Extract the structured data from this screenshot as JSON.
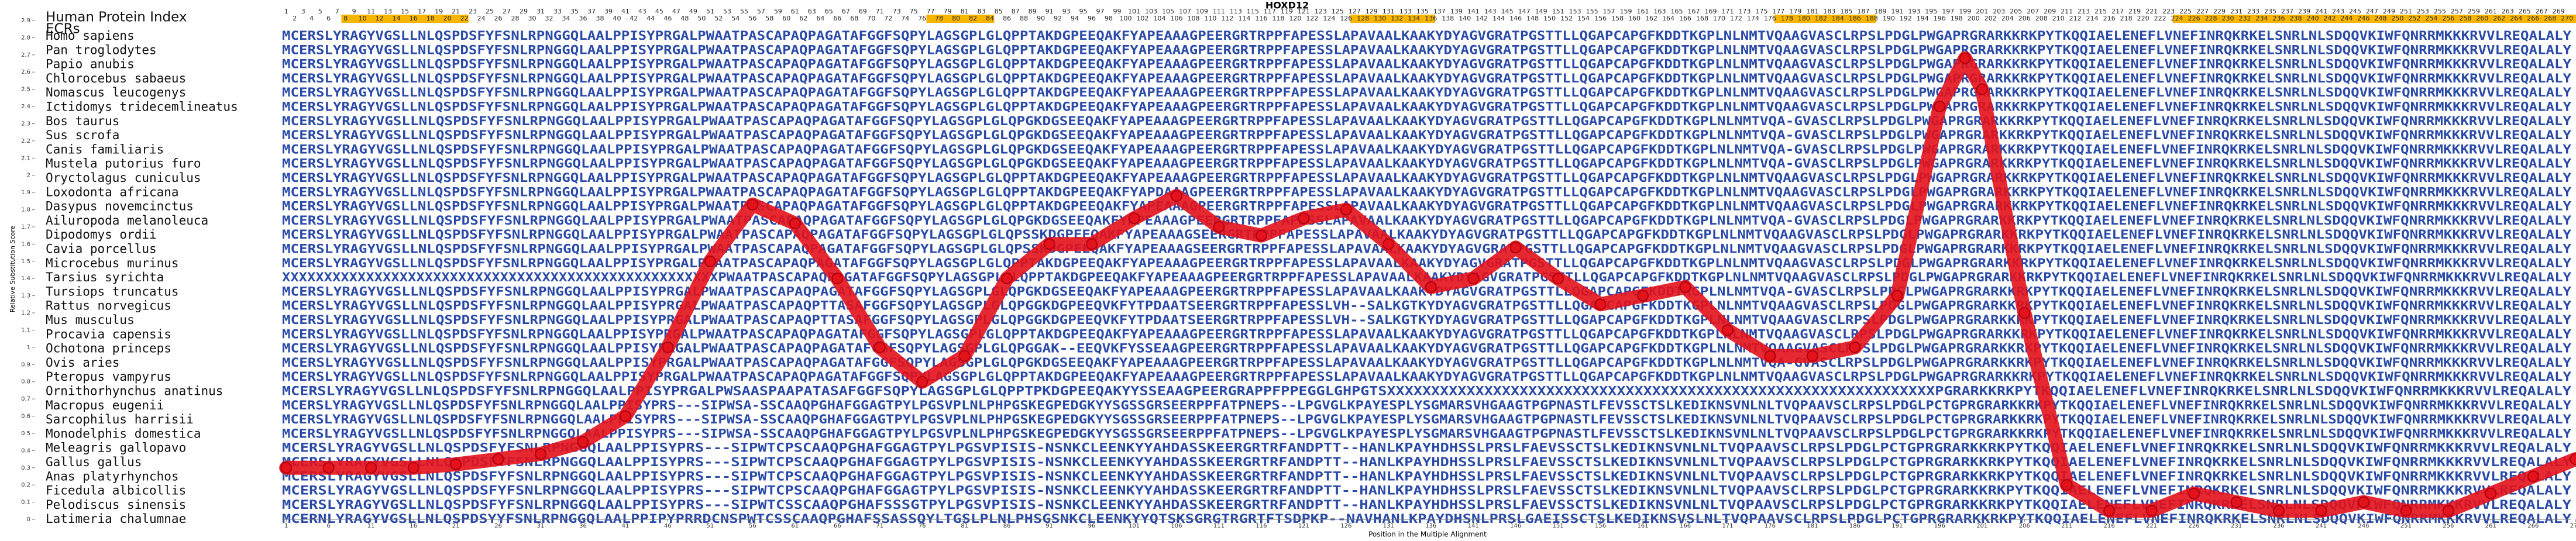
{
  "chart_data": {
    "type": "line",
    "title": "HOXD12",
    "x_label": "Position in the Multiple Alignment",
    "y_label": "Relative Substitution Score",
    "x": [
      1,
      6,
      11,
      16,
      21,
      26,
      31,
      36,
      41,
      46,
      51,
      56,
      61,
      66,
      71,
      76,
      81,
      86,
      91,
      96,
      101,
      106,
      111,
      116,
      121,
      126,
      131,
      136,
      141,
      146,
      151,
      156,
      161,
      166,
      171,
      176,
      181,
      186,
      191,
      196,
      199,
      201,
      206,
      211,
      216,
      221,
      226,
      231,
      236,
      241,
      246,
      251,
      256,
      261,
      266,
      271
    ],
    "series": [
      {
        "name": "Relative Substitution Score",
        "color": "#e3121b",
        "values": [
          0.3,
          0.3,
          0.3,
          0.3,
          0.32,
          0.35,
          0.38,
          0.45,
          0.6,
          1.0,
          1.5,
          1.83,
          1.72,
          1.4,
          1.0,
          0.8,
          0.95,
          1.4,
          1.6,
          1.6,
          1.75,
          1.88,
          1.7,
          1.65,
          1.75,
          1.8,
          1.6,
          1.35,
          1.4,
          1.58,
          1.4,
          1.25,
          1.3,
          1.35,
          1.1,
          0.95,
          0.95,
          1.0,
          1.3,
          2.4,
          2.68,
          2.5,
          1.2,
          0.2,
          0.05,
          0.05,
          0.15,
          0.1,
          0.05,
          0.05,
          0.1,
          0.05,
          0.05,
          0.15,
          0.25,
          0.35
        ]
      }
    ],
    "xlim": [
      1,
      271
    ],
    "ylim": [
      0,
      2.9
    ],
    "xticks": [
      1,
      6,
      11,
      16,
      21,
      26,
      31,
      36,
      41,
      46,
      51,
      56,
      61,
      66,
      71,
      76,
      81,
      86,
      91,
      96,
      101,
      106,
      111,
      116,
      121,
      126,
      131,
      136,
      141,
      146,
      151,
      156,
      161,
      166,
      171,
      176,
      181,
      186,
      191,
      196,
      201,
      206,
      211,
      216,
      221,
      226,
      231,
      236,
      241,
      246,
      251,
      256,
      261,
      266,
      271
    ],
    "yticks": [
      0,
      0.1,
      0.2,
      0.3,
      0.4,
      0.5,
      0.6,
      0.7,
      0.8,
      0.9,
      1,
      1.1,
      1.2,
      1.3,
      1.4,
      1.5,
      1.6,
      1.7,
      1.8,
      1.9,
      2,
      2.1,
      2.2,
      2.3,
      2.4,
      2.5,
      2.6,
      2.7,
      2.8,
      2.9
    ]
  },
  "alignment": {
    "index_label": "Human Protein Index",
    "ecr_label": "ECRs",
    "positions": [
      1,
      2,
      3,
      4,
      5,
      6,
      7,
      8,
      9,
      10,
      11,
      12,
      13,
      14,
      15,
      16,
      17,
      18,
      19,
      20,
      21,
      22,
      23,
      24,
      25,
      26,
      27,
      28,
      29,
      30,
      31,
      32,
      33,
      34,
      35,
      36,
      37,
      38,
      39,
      40,
      41,
      42,
      43,
      44,
      45,
      46,
      47,
      48,
      49,
      50,
      51,
      52,
      53,
      54,
      55,
      56,
      57,
      58,
      59,
      60,
      61,
      62,
      63,
      64,
      65,
      66,
      67,
      68,
      69,
      70,
      71,
      72,
      73,
      74,
      75,
      76,
      77,
      78,
      79,
      80,
      81,
      82,
      83,
      84,
      85,
      86,
      87,
      88,
      89,
      90,
      91,
      92,
      93,
      94,
      95,
      96,
      97,
      98,
      99,
      100,
      101,
      102,
      103,
      104,
      105,
      106,
      107,
      108,
      109,
      110,
      111,
      112,
      113,
      114,
      115,
      116,
      117,
      118,
      119,
      120,
      121,
      122,
      123,
      124,
      125,
      126,
      127,
      128,
      129,
      130,
      131,
      132,
      133,
      134,
      135,
      136,
      137,
      138,
      139,
      140,
      141,
      142,
      143,
      144,
      145,
      146,
      147,
      148,
      149,
      150,
      151,
      152,
      153,
      154,
      155,
      156,
      157,
      158,
      159,
      160,
      161,
      162,
      163,
      164,
      165,
      166,
      167,
      168,
      169,
      170,
      171,
      172,
      173,
      174,
      175,
      176,
      177,
      178,
      179,
      180,
      181,
      182,
      183,
      184,
      185,
      186,
      187,
      188,
      189,
      190,
      191,
      192,
      193,
      194,
      195,
      196,
      197,
      198,
      199,
      200,
      201,
      202,
      203,
      204,
      205,
      206,
      207,
      208,
      209,
      210,
      211,
      212,
      213,
      214,
      215,
      216,
      217,
      218,
      219,
      220,
      221,
      222,
      223,
      224,
      225,
      226,
      227,
      228,
      229,
      230,
      231,
      232,
      233,
      234,
      235,
      236,
      237,
      238,
      239,
      240,
      241,
      242,
      243,
      244,
      245,
      246,
      247,
      248,
      249,
      250,
      251,
      252,
      253,
      254,
      255,
      256,
      257,
      258,
      259,
      260,
      261,
      262,
      263,
      264,
      265,
      266,
      267,
      268,
      269,
      270
    ],
    "ecrs": [
      [
        8,
        22
      ],
      [
        77,
        84
      ],
      [
        127,
        136
      ],
      [
        177,
        188
      ],
      [
        224,
        271
      ]
    ],
    "ecr_color": "#f7b500",
    "species": [
      "Homo sapiens",
      "Pan troglodytes",
      "Papio anubis",
      "Chlorocebus sabaeus",
      "Nomascus leucogenys",
      "Ictidomys tridecemlineatus",
      "Bos taurus",
      "Sus scrofa",
      "Canis familiaris",
      "Mustela putorius furo",
      "Oryctolagus cuniculus",
      "Loxodonta africana",
      "Dasypus novemcinctus",
      "Ailuropoda melanoleuca",
      "Dipodomys ordii",
      "Cavia porcellus",
      "Microcebus murinus",
      "Tarsius syrichta",
      "Tursiops truncatus",
      "Rattus norvegicus",
      "Mus musculus",
      "Procavia capensis",
      "Ochotona princeps",
      "Ovis aries",
      "Pteropus vampyrus",
      "Ornithorhynchus anatinus",
      "Macropus eugenii",
      "Sarcophilus harrisii",
      "Monodelphis domestica",
      "Meleagris gallopavo",
      "Gallus gallus",
      "Anas platyrhynchos",
      "Ficedula albicollis",
      "Pelodiscus sinensis",
      "Latimeria chalumnae"
    ],
    "sequences": [
      "MCERSLYRAGYVGSLLNLQSPDSFYFSNLRPNGGQLAALPPISYPRGALPWAATPASCAPAQPAGATAFGGFSQPYLAGSGPLGLQPPTAKDGPEEQAKFYAPEAAAGPEERGRTRPPFAPESSLAPAVAALKAAKYDYAGVGRATPGSTTLLQGAPCAPGFKDDTKGPLNLNMTVQAAGVASCLRPSLPDGLPWGAPRGRARKKRKPYTKQQIAELENEFLVNEFINRQKRKELSNRLNLSDQQVKIWFQNRRMKKKRVVLREQALALY",
      "MCERSLYRAGYVGSLLNLQSPDSFYFSNLRPNGGQLAALPPISYPRGALPWAATPASCAPAQPAGATAFGGFSQPYLAGSGPLGLQPPTAKDGPEEQAKFYAPEAAAGPEERGRTRPPFAPESSLAPAVAALKAAKYDYAGVGRATPGSTTLLQGAPCAPGFKDDTKGPLNLNMTVQAAGVASCLRPSLPDGLPWGAPRGRARKKRKPYTKQQIAELENEFLVNEFINRQKRKELSNRLNLSDQQVKIWFQNRRMKKKRVVLREQALALY",
      "MCERSLYRAGYVGSLLNLQSPDSFYFSNLRPNGGQLAALPPISYPRGALPWAATPASCAPAQPAGATAFGGFSQPYLAGSGPLGLQPPTAKDGPEEQAKFYAPEAAAGPEERGRTRPPFAPESSLAPAVAALKAAKYDYAGVGRATPGSTTLLQGAPCAPGFKDDTKGPLNLNMTVQAAGVASCLRPSLPDGLPWGAPRGRARKKRKPYTKQQIAELENEFLVNEFINRQKRKELSNRLNLSDQQVKIWFQNRRMKKKRVVLREQALALY",
      "MCERSLYRAGYVGSLLNLQSPDSFYFSNLRPNGGQLAALPPISYPRGALPWAATPASCAPAQPAGATAFGGFSQPYLAGSGPLGLQPPTAKDGPEEQAKFYAPEAAAGPEERGRTRPPFAPESSLAPAVAALKAAKYDYAGVGRATPGSTTLLQGAPCAPGFKDDTKGPLNLNMTVQAAGVASCLRPSLPDGLPWGAPRGRARKKRKPYTKQQIAELENEFLVNEFINRQKRKELSNRLNLSDQQVKIWFQNRRMKKKRVVLREQALALY",
      "MCERSLYRAGYVGSLLNLQSPDSFYFSNLRPNGGQLAALPPISYPRGALPWAATPASCAPAQPAGATAFGGFSQPYLAGSGPLGLQPPTAKDGPEEQAKFYAPEAAAGPEERGRTRPPFAPESSLAPAVAALKAAKYDYAGVGRATPGSTTLLQGAPCAPGFKDDTKGPLNLNMTVQAAGVASCLRPSLPDGLPWGAPRGRARKKRKPYTKQQIAELENEFLVNEFINRQKRKELSNRLNLSDQQVKIWFQNRRMKKKRVVLREQALALY",
      "MCERSLYRAGYVGSLLNLQSPDSFYFSNLRPNGGQLAALPPISYPRGALPWAATPASCAPAQPAGATAFGGFSQPYLAGSGPLGLQPPTAKDGPEEQAKFYAPEAAAGPEERGRTRPPFAPESSLAPAVAALKAAKYDYAGVGRATPGSTTLLQGAPCAPGFKDDTKGPLNLNMTVQAAGVASCLRPSLPDGLPWGAPRGRARKKRKPYTKQQIAELENEFLVNEFINRQKRKELSNRLNLSDQQVKIWFQNRRMKKKRVVLREQALALY",
      "MCERSLYRAGYVGSLLNLQSPDSFYFSNLRPNGGQLAALPPISYPRGALPWAATPASCAPAQPAGATAFGGFSQPYLAGSGPLGLQPGKDGSEEQAKFYAPEAAAGPEERGRTRPPFAPESSLAPAVAALKAAKYDYAGVGRATPGSTTLLQGAPCAPGFKDDTKGPLNLNMTVQA-GVASCLRPSLPDGLPWGAPRGRARKKRKPYTKQQIAELENEFLVNEFINRQKRKELSNRLNLSDQQVKIWFQNRRMKKKRVVLREQALALY",
      "MCERSLYRAGYVGSLLNLQSPDSFYFSNLRPNGGQLAALPPISYPRGALPWAATPASCAPAQPAGATAFGGFSQPYLAGSGPLGLQPGKDGSEEQAKFYAPEAAAGPEERGRTRPPFAPESSLAPAVAALKAAKYDYAGVGRATPGSTTLLQGAPCAPGFKDDTKGPLNLNMTVQA-GVASCLRPSLPDGLPWGAPRGRARKKRKPYTKQQIAELENEFLVNEFINRQKRKELSNRLNLSDQQVKIWFQNRRMKKKRVVLREQALALY",
      "MCERSLYRAGYVGSLLNLQSPDSFYFSNLRPNGGQLAALPPISYPRGALPWAATPASCAPAQPAGATAFGGFSQPYLAGSGPLGLQPGKDGSEEQAKFYAPEAAAGPEERGRTRPPFAPESSLAPAVAALKAAKYDYAGVGRATPGSTTLLQGAPCAPGFKDDTKGPLNLNMTVQA-GVASCLRPSLPDGLPWGAPRGRARKKRKPYTKQQIAELENEFLVNEFINRQKRKELSNRLNLSDQQVKIWFQNRRMKKKRVVLREQALALY",
      "MCERSLYRAGYVGSLLNLQSPDSFYFSNLRPNGGQLAALPPISYPRGALPWAATPASCAPAQPAGATAFGGFSQPYLAGSGPLGLQPGKDGSEEQAKFYAPEAAAGPEERGRTRPPFAPESSLAPAVAALKAAKYDYAGVGRATPGSTTLLQGAPCAPGFKDDTKGPLNLNMTVQA-GVASCLRPSLPDGLPWGAPRGRARKKRKPYTKQQIAELENEFLVNEFINRQKRKELSNRLNLSDQQVKIWFQNRRMKKKRVVLREQALALY",
      "MCERSLYRAGYVGSLLNLQSPDSFYFSNLRPNGGQLAALPPISYPRGALPWAATPASCAPAQPAGATAFGGFSQPYLAGSGPLGLQPPTAKDGPEEQAKFYAPEAAAGPEERGRTRPPFAPESSLAPAVAALKAAKYDYAGVGRATPGSTTLLQGAPCAPGFKDDTKGPLNLNMTVQAAGVASCLRPSLPDGLPWGAPRGRARKKRKPYTKQQIAELENEFLVNEFINRQKRKELSNRLNLSDQQVKIWFQNRRMKKKRVVLREQALALY",
      "MCERSLYRAGYVGSLLNLQSPDSFYFSNLRPNGGQLAALPPISYPRGALPWAATPASCAPAQPAGATAFGGFSQPYLAGSGPLGLQPPTAKDGPEEQAKFYAPDAAAGPEERGRTRPPFAPESSLAPAVAALKAAKYDYAGVGRATPGSTTLLQGAPCAPGFKDDTKGPLNLNMTVQAAGVASCLRPSLPDGLPWGAPRGRARKKRKPYTKQQIAELENEFLVNEFINRQKRKELSNRLNLSDQQVKIWFQNRRMKKKRVVLREQALALY",
      "MCERSLYRAGYVGSLLNLQSPDSFYFSNLRPNGGQLAALPPISYPRGALPWAATPASCAPAQPAGATAFGGFSQPYLAGSGPLGLQPPTAKDGPEEQAKFYAPEAAAGPEERGRTRPPFAPESSLAPAVAALKAAKYDYAGVGRATPGSTTLLQGAPCAPGFKDDTKGPLNLNMTVQAAGVASCLRPSLPDGLPWGAPRGRARKKRKPYTKQQIAELENEFLVNEFINRQKRKELSNRLNLSDQQVKIWFQNRRMKKKRVVLREQALALY",
      "MCERSLYRAGYVGSLLNLQSPDSFYFSNLRPNGGQLAALPPISYPRGALPWAATPASCAPAQPAGATAFGGFSQPYLAGSGPLGLQPGKDGSEEQAKFYAPEAAAGPEERGRTRPPFAPESSLAPAVAALKAAKYDYAGVGRATPGSTTLLQGAPCAPGFKDDTKGPLNLNMTVQA-GVASCLRPSLPDGLPWGAPRGRARKKRKPYTKQQIAELENEFLVNEFINRQKRKELSNRLNLSDQQVKIWFQNRRMKKKRVVLREQALALY",
      "MCERSLYRAGYVGSLLNLQSPDSFYFSNLRPNGGQLAALPPISYPRGALPWAATPASCAPAQPAGATAFGGFSQPYLAGSGPLGLQPSSKDGPEEQAKFYAPEAAAGSEERGRTRPPFAPESSLAPAVAALKAAKYDYAGVGRATPGSTTLLQGAPCAPGFKDDTKGPLNLNMTVQAAGVASCLRPSLPDGLPWGAPRGRARKKRKPYTKQQIAELENEFLVNEFINRQKRKELSNRLNLSDQQVKIWFQNRRMKKKRVVLREQALALY",
      "MCERSLYRAGYVGSLLNLQSPDSFYFSNLRPNGGQLAALPPISYPRGALPWAATPASCAPAQPAGATAFGGFSQPYLAGSGPLGLQPSSKDGPEEQAKFYAPEAAAGSEERGRTRPPFAPESSLAPAVAALKAAKYDYAGVGRATPGSTTLLQGAPCAPGFKDDTKGPLNLNMTVQAAGVASCLRPSLPDGLPWGAPRGRARKKRKPYTKQQIAELENEFLVNEFINRQKRKELSNRLNLSDQQVKIWFQNRRMKKKRVVLREQALALY",
      "MCERSLYRAGYVGSLLNLQSPDSFYFSNLRPNGGQLAALPPISYPRGALPWAATPASCAPAQPAGATAFGGFSQPYLAGSGPLGLQPPTAKDGPEEQAKFYAPEAAAGPEERGRTRPPFAPESSLAPAVAALKAAKYDYAGVGRATPGSTTLLQGAPCAPGFKDDTKGPLNLNMTVQAAGVASCLRPSLPDGLPWGAPRGRARKKRKPYTKQQIAELENEFLVNEFINRQKRKELSNRLNLSDQQVKIWFQNRRMKKKRVVLREQALALY",
      "XXXXXXXXXXXXXXXXXXXXXXXXXXXXXXXXXXXXXXXXXXXXXXXXXXXXPWAATPASCAPAQPAGATAFGGFSQPYLAGSGPLGLQPPTAKDGPEEQAKFYAPEAAAGPEERGRTRPPFAPESSLAPAVAALKAAKYDYAGVGRATPGSTTLLQGAPCAPGFKDDTKGPLNLNMTVQAAGVASCLRPSLPDGLPWGAPRGRARKKRKPYTKQQIAELENEFLVNEFINRQKRKELSNRLNLSDQQVKIWFQNRRMKKKRVVLREQALALY",
      "MCERSLYRAGYVGSLLNLQSPDSFYFSNLRPNGGQLAALPPISYPRGALPWAATPASCAPAQPAGATAFGGFSQPYLAGSGPLGLQPGKDGSEEQAKFYAPEAAAGPEERGRTRPPFAPESSLAPAVAALKAAKYDYAGVGRATPGSTTLLQGAPCAPGFKDDTKGPLNLNMTVQA-GVASCLRPSLPDGLPWGAPRGRARKKRKPYTKQQIAELENEFLVNEFINRQKRKELSNRLNLSDQQVKIWFQNRRMKKKRVVLREQALALY",
      "MCERSLYRAGYVGSLLNLQSPDSFYFSNLRPNGGQLAALPPISYPRGALPWAATPASCAPAQPTTASAFGGFSQPYLAGSGPLGLQPGGKDGPEEQVKFYTPDAATSEERGRTRPPFAPESSLVH--SALKGTKYDYAGVGRATPGSTTLLQGAPCAPGFKDDTKGPLNLNMTVQAAGVASCLRPSLPDGLPWGAPRGRARKKRKPYTKQQIAELENEFLVNEFINRQKRKELSNRLNLSDQQVKIWFQNRRMKKKRVVLREQALALY",
      "MCERSLYRAGYVGSLLNLQSPDSFYFSNLRPNGGQLAALPPISYPRGALPWAATPASCAPAQPTTASAFGGFSQPYLAGSGPLGLQPGGKDGPEEQVKFYTPDAATSEERGRTRPPFAPESSLVH--SALKGTKYDYAGVGRATPGSTTLLQGAPCAPGFKDDTKGPLNLNMTVQAAGVASCLRPSLPDGLPWGAPRGRARKKRKPYTKQQIAELENEFLVNEFINRQKRKELSNRLNLSDQQVKIWFQNRRMKKKRVVLREQALALY",
      "MCERSLYRAGYVGSLLNLQSPDSFYFSNLRPNGGQLAALPPISYPRGALPWAATPASCAPAQPAGATAFGGFSQPYLAGSGPLGLQPPTAKDGPEEQAKFYAPEAAAGPEERGRTRPPFAPESSLAPAVAALKAAKYDYAGVGRATPGSTTLLQGAPCAPGFKDDTKGPLNLNMTVQAAGVASCLRPSLPDGLPWGAPRGRARKKRKPYTKQQIAELENEFLVNEFINRQKRKELSNRLNLSDQQVKIWFQNRRMKKKRVVLREQALALY",
      "MCERSLYRAGYVGSLLNLQSPDSFYFSNLRPNGGQLAALPPISYPRGALPWAATPASCAPAQPAGATAFGGFSQPYLAGSGPLGLQPGGAK--EEQVKFYSSEAAGPEERGRTRPPFAPESSLAPAVAALKAAKYDYAGVGRATPGSTTLLQGAPCAPGFKDDTKGPLNLNMTVQAAGVASCLRPSLPDGLPWGAPRGRARKKRKPYTKQQIAELENEFLVNEFINRQKRKELSNRLNLSDQQVKIWFQNRRMKKKRVVLREQALALY",
      "MCERSLYRAGYVGSLLNLQSPDSFYFSNLRPNGGQLAALPPISYPRGALPWAATPASCAPAQPAGATAFGGFSQPYLAGSGPLGLQPGKDGSEEQAKFYAPEAAAGPEERGRTRPPFAPESSLAPAVAALKAAKYDYAGVGRATPGSTTLLQGAPCAPGFKDDTKGPLNLNMTVQA-GVASCLRPSLPDGLPWGAPRGRARKKRKPYTKQQIAELENEFLVNEFINRQKRKELSNRLNLSDQQVKIWFQNRRMKKKRVVLREQALALY",
      "MCERSLYRAGYVGSLLNLQSPDSFYFSNLRPNGGQLAALPPISYPRGALPWAATPASCAPAQPAGATAFGGFSQPYLAGSGPLGLQPPTAKDGPEEQAKFYAPEAAAGPEERGRTRPPFAPESSLAPAVAALKAAKYDYAGVGRATPGSTTLLQGAPCAPGFKDDTKGPLNLNMTVQAAGVASCLRPSLPDGLPWGAPRGRARKKRKPYTKQQIAELENEFLVNEFINRQKRKELSNRLNLSDQQVKIWFQNRRMKKKRVVLREQALALY",
      "MCERSLYRAGYVGSLLNLQSPDSFYFSNLRPNGGQLAALPPISYPRGALPWSAASPAAPATASAFGGFSQPYLAGSGPLGLQPPTPKDGPEEQAKYYSSEAAGPEERGRAPPFPPEGGLGHPGTSXXXXXXXXXXXXXXXXXXXXXXXXXXXXXXXXXXXXXXXXXXXXXXXXXXXXXXXXXXXXXXPGRARKKRKPYTKQQIAELENEFLVNEFINRQKRKELSNRLNLSDQQVKIWFQNRRMKKKRVVLREQALALY",
      "MCERSLYRAGYVGSLLNLQSPDSFYFSNLRPNGGQLAALPPISYPRS---SIPWSA-SSCAAQPGHAFGGAGTPYLPGSVPLNLPHPGSKEGPEDGKYYSGSSGRSEERPPFATPNEPS--LPGVGLKPAYESPLYSGMARSVHGAAGTPGPNASTLFEVSSCTSLKEDIKNSVNLNLTVQPAAVSCLRPSLPDGLPCTGPRGRARKKRKPYTKQQIAELENEFLVNEFINRQKRKELSNRLNLSDQQVKIWFQNRRMKKKRVVLREQALALY",
      "MCERSLYRAGYVGSLLNLQSPDSFYFSNLRPNGGQLAALPPISYPRS---SIPWSA-SSCAAQPGHAFGGAGTPYLPGSVPLNLPHPGSKEGPEDGKYYSGSSGRSEERPPFATPNEPS--LPGVGLKPAYESPLYSGMARSVHGAAGTPGPNASTLFEVSSCTSLKEDIKNSVNLNLTVQPAAVSCLRPSLPDGLPCTGPRGRARKKRKPYTKQQIAELENEFLVNEFINRQKRKELSNRLNLSDQQVKIWFQNRRMKKKRVVLREQALALY",
      "MCERSLYRAGYVGSLLNLQSPDSFYFSNLRPNGGQLAALPPISYPRS---SIPWSA-SSCAAQPGHAFGGAGTPYLPGSVPLNLPHPGSKEGPEDGKYYSGSSGRSEERPPFATPNEPS--LPGVGLKPAYESPLYSGMARSVHGAAGTPGPNASTLFEVSSCTSLKEDIKNSVNLNLTVQPAAVSCLRPSLPDGLPCTGPRGRARKKRKPYTKQQIAELENEFLVNEFINRQKRKELSNRLNLSDQQVKIWFQNRRMKKKRVVLREQALALY",
      "MCERSLYRAGYVGSLLNLQSPDSFYFSNLRPNGGQLAALPPISYPRS---SIPWTCPSCAAQPGHAFGGAGTPYLPGSVPISIS-NSNKCLEENKYYAHDASSKEERGRTRFANDPTT--HANLKPAYHDHSSLPRSLFAEVSSCTSLKEDIKNSVNLNLTVQPAAVSCLRPSLPDGLPCTGPRGRARKKRKPYTKQQIAELENEFLVNEFINRQKRKELSNRLNLSDQQVKIWFQNRRMKKKRVVLREQALALY",
      "MCERSLYRAGYVGSLLNLQSPDSFYFSNLRPNGGQLAALPPISYPRS---SIPWTCPSCAAQPGHAFGGAGTPYLPGSVPISIS-NSNKCLEENKYYAHDASSKEERGRTRFANDPTT--HANLKPAYHDHSSLPRSLFAEVSSCTSLKEDIKNSVNLNLTVQPAAVSCLRPSLPDGLPCTGPRGRARKKRKPYTKQQIAELENEFLVNEFINRQKRKELSNRLNLSDQQVKIWFQNRRMKKKRVVLREQALALY",
      "MCERSLYRAGYVGSLLNLQSPDSFYFSNLRPNGGQLAALPPISYPRS---SIPWTCPSCAAQPGHAFGGAGTPYLPGSVPISIS-NSNKCLEENKYYAHDASSKEERGRTRFANDPTT--HANLKPAYHDHSSLPRSLFAEVSSCTSLKEDIKNSVNLNLTVQPAAVSCLRPSLPDGLPCTGPRGRARKKRKPYTKQQIAELENEFLVNEFINRQKRKELSNRLNLSDQQVKIWFQNRRMKKKRVVLREQALALY",
      "MCERSLYRAGYVGSLLNLQSPDSFYFSNLRPNGGQLAALPPISYPRS---SIPWTCPSCAAQPGHAFGGAGTPYLPGSVPISIS-NSNKCLEENKYYAHDASSKEERGRTRFANDPTT--HANLKPAYHDHSSLPRSLFAEVSSCTSLKEDIKNSVNLNLTVQPAAVSCLRPSLPDGLPCTGPRGRARKKRKPYTKQQIAELENEFLVNEFINRQKRKELSNRLNLSDQQVKIWFQNRRMKKKRVVLREQALALY",
      "MCERSLYRAGYVGSLLNLQSPDSFYFSNLRPNGGQLAALPPISYPRS---SIPWTCSSCAAQPGHAFSSSGTPYLPGSVPISIS-NSNKCLEENKYYAHDASSKEERGRTRFANDPTT--HANLKPAYHDHSSLPRSLFAEVSSCTSLKEDIKNSVNLNLTVQPAAVSCLRPSLPDGLPCTGPRGRARKKRKPYTKQQIAELENEFLVNEFINRQKRKELSNRLNLSDQQVKIWFQNRRMKKKRVVLREQALALY",
      "MCERNLYRAGYVGSLLNLQSPDSYYFSNLRPNGGQLAALPPIPYPRRDCNSPWTCSSCAAQPGHAFSSASSQYLTGSLPLNLPHSGSNKCLEENKYYQTSKSGRGTRGRTFTSDPKP--NAVHANLKPAYDHSNLPRSLGAEISSCTSLKEDIKNSVSLNLTVQPAAVSCLRPSLPDGLPCTGPRGRARKKRKPYTKQQIAELENEFLVNEFINRQKRKELSNRLNLSDQQVKIWFQNRRMKKKRVVLREQALALY"
    ]
  }
}
